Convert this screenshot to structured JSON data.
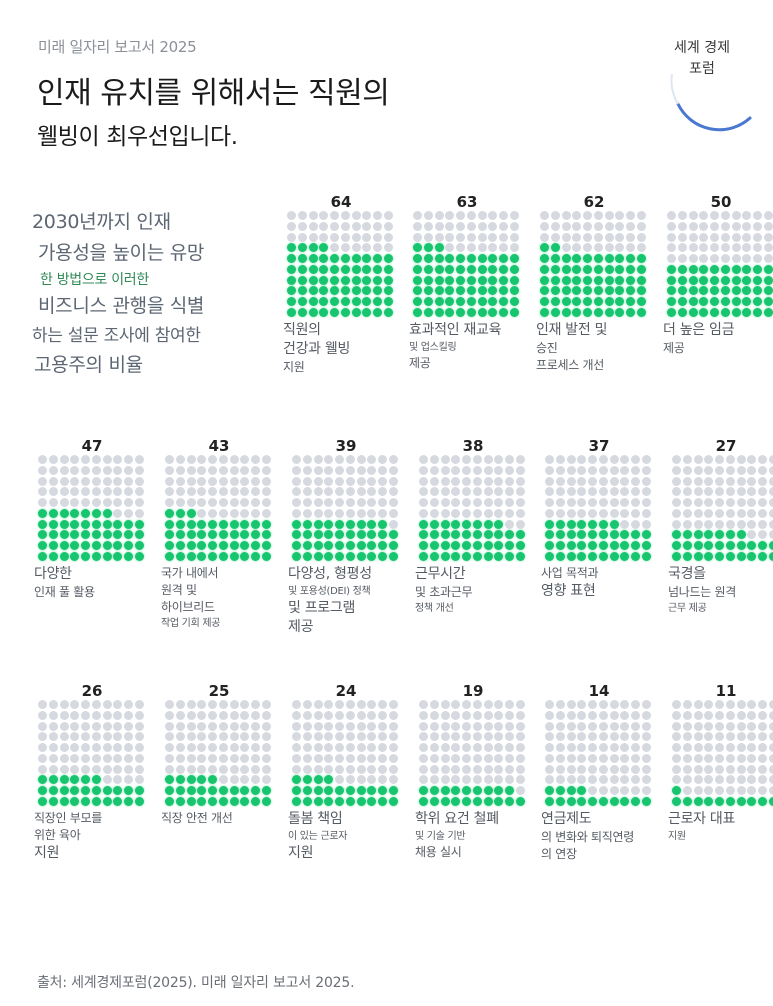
{
  "header": {
    "kicker": "미래 일자리 보고서 2025",
    "title_line1": "인재 유치를 위해서는 직원의",
    "title_line2": "웰빙이 최우선입니다.",
    "logo_line1": "세계 경제",
    "logo_line2": "포럼"
  },
  "description": {
    "lines": [
      "2030년까지 인재",
      "가용성을 높이는 유망",
      "한 방법으로 이러한",
      "비즈니스 관행을 식별",
      "하는 설문 조사에 참여한",
      "고용주의 비율"
    ]
  },
  "colors": {
    "filled": "#17c56f",
    "empty": "#d6d9df",
    "accent_blue": "#4a78d0"
  },
  "chart_data": {
    "type": "waffle",
    "title": "인재 유치를 위해서는 직원의 웰빙이 최우선입니다.",
    "subtitle": "2030년까지 인재 가용성을 높이는 유망한 방법으로 이러한 비즈니스 관행을 식별하는 설문 조사에 참여한 고용주의 비율",
    "unit": "%",
    "grid": [
      10,
      10
    ],
    "categories": [
      "직원의 건강과 웰빙 지원",
      "효과적인 재교육 및 업스킬링 제공",
      "인재 발전 및 승진 프로세스 개선",
      "더 높은 임금 제공",
      "다양한 인재 풀 활용",
      "국가 내에서 원격 및 하이브리드 작업 기회 제공",
      "다양성, 형평성 및 포용성(DEI) 정책 및 프로그램 제공",
      "근무시간 및 초과근무 정책 개선",
      "사업 목적과 영향 표현",
      "국경을 넘나드는 원격 근무 제공",
      "직장인 부모를 위한 육아 지원",
      "직장 안전 개선",
      "돌봄 책임이 있는 근로자 지원",
      "학위 요건 철폐 및 기술 기반 채용 실시",
      "연금제도의 변화와 퇴직연령의 연장",
      "근로자 대표 지원"
    ],
    "values": [
      64,
      63,
      62,
      50,
      47,
      43,
      39,
      38,
      37,
      27,
      26,
      25,
      24,
      19,
      14,
      11
    ],
    "source": "출처: 세계경제포럼(2025). 미래 일자리 보고서 2025."
  },
  "charts": [
    {
      "value": "64",
      "label": [
        [
          "직원의",
          "s-l"
        ],
        [
          "건강과 웰빙",
          "s-l"
        ],
        [
          "지원",
          "s-m"
        ]
      ]
    },
    {
      "value": "63",
      "label": [
        [
          "효과적인 재교육",
          "s-l"
        ],
        [
          "및 업스킬링",
          "s-s"
        ],
        [
          "제공",
          "s-m"
        ]
      ]
    },
    {
      "value": "62",
      "label": [
        [
          "인재 발전 및",
          "s-l"
        ],
        [
          "승진",
          "s-m"
        ],
        [
          "프로세스 개선",
          "s-m"
        ]
      ]
    },
    {
      "value": "50",
      "label": [
        [
          "더 높은 임금",
          "s-l"
        ],
        [
          "제공",
          "s-m"
        ]
      ]
    },
    {
      "value": "47",
      "label": [
        [
          "다양한",
          "s-l"
        ],
        [
          "인재 풀 활용",
          "s-m"
        ]
      ]
    },
    {
      "value": "43",
      "label": [
        [
          "국가 내에서",
          "s-m"
        ],
        [
          "원격 및",
          "s-m"
        ],
        [
          "하이브리드",
          "s-m"
        ],
        [
          "작업 기회 제공",
          "s-s"
        ]
      ]
    },
    {
      "value": "39",
      "label": [
        [
          "다양성, 형평성",
          "s-l"
        ],
        [
          "및 포용성(DEI) 정책",
          "s-s"
        ],
        [
          "및 프로그램",
          "s-l"
        ],
        [
          "제공",
          "s-l"
        ]
      ]
    },
    {
      "value": "38",
      "label": [
        [
          "근무시간",
          "s-l"
        ],
        [
          "및 초과근무",
          "s-m"
        ],
        [
          "정책 개선",
          "s-s"
        ]
      ]
    },
    {
      "value": "37",
      "label": [
        [
          "사업 목적과",
          "s-m"
        ],
        [
          "영향 표현",
          "s-l"
        ]
      ]
    },
    {
      "value": "27",
      "label": [
        [
          "국경을",
          "s-l"
        ],
        [
          "넘나드는 원격",
          "s-m"
        ],
        [
          "근무 제공",
          "s-s"
        ]
      ]
    },
    {
      "value": "26",
      "label": [
        [
          "직장인 부모를",
          "s-m"
        ],
        [
          "위한 육아",
          "s-m"
        ],
        [
          "지원",
          "s-l"
        ]
      ]
    },
    {
      "value": "25",
      "label": [
        [
          "직장 안전 개선",
          "s-m"
        ]
      ]
    },
    {
      "value": "24",
      "label": [
        [
          "돌봄 책임",
          "s-l"
        ],
        [
          "이 있는 근로자",
          "s-s"
        ],
        [
          "지원",
          "s-l"
        ]
      ]
    },
    {
      "value": "19",
      "label": [
        [
          "학위 요건 철폐",
          "s-l"
        ],
        [
          "및 기술 기반",
          "s-s"
        ],
        [
          "채용 실시",
          "s-m"
        ]
      ]
    },
    {
      "value": "14",
      "label": [
        [
          "연금제도",
          "s-l"
        ],
        [
          "의 변화와 퇴직연령",
          "s-m"
        ],
        [
          "의 연장",
          "s-m"
        ]
      ]
    },
    {
      "value": "11",
      "label": [
        [
          "근로자 대표",
          "s-l"
        ],
        [
          "지원",
          "s-s"
        ]
      ]
    }
  ],
  "footer": {
    "source": "출처: 세계경제포럼(2025). 미래 일자리 보고서 2025."
  }
}
